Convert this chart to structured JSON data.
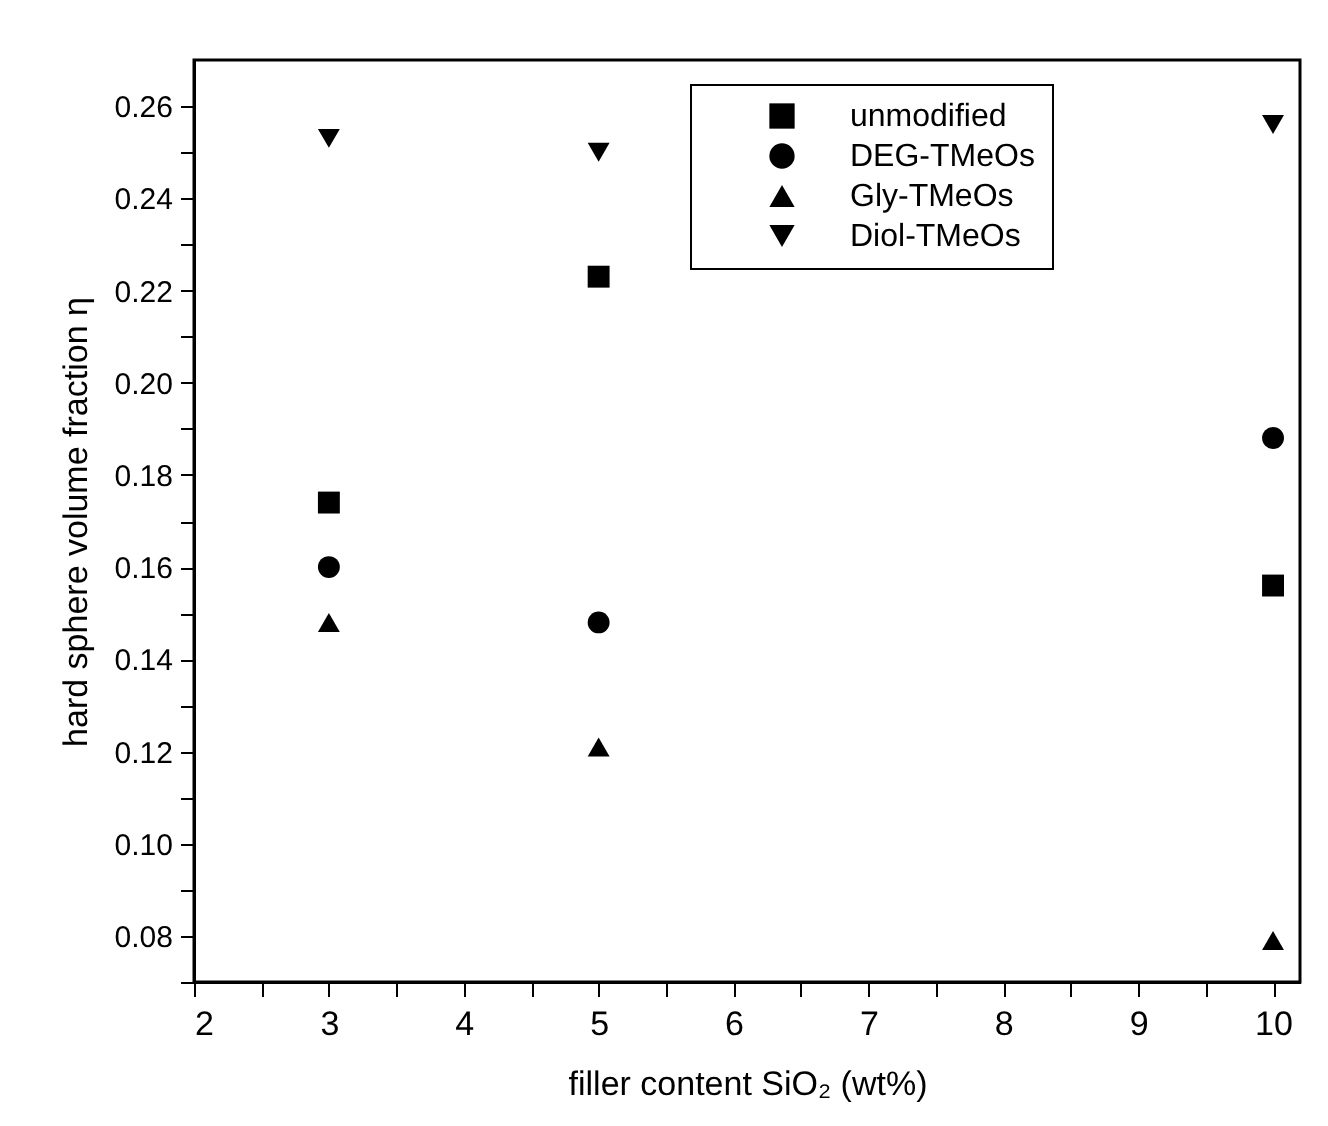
{
  "chart_data": {
    "type": "scatter",
    "xlabel": "filler content SiO₂ (wt%)",
    "ylabel": "hard sphere volume fraction η",
    "x": [
      3,
      5,
      10
    ],
    "series": [
      {
        "name": "unmodified",
        "color": "#000000",
        "marker": "square",
        "values": [
          0.174,
          0.223,
          0.156
        ]
      },
      {
        "name": "DEG-TMeOs",
        "color": "#000000",
        "marker": "circle",
        "values": [
          0.16,
          0.148,
          0.188
        ]
      },
      {
        "name": "Gly-TMeOs",
        "color": "#000000",
        "marker": "triangle",
        "values": [
          0.148,
          0.121,
          0.079
        ]
      },
      {
        "name": "Diol-TMeOs",
        "color": "#000000",
        "marker": "triangle-down",
        "values": [
          0.253,
          0.25,
          0.256
        ]
      }
    ],
    "xlim": [
      2,
      10.2
    ],
    "xticks": [
      2,
      {
        "value": 2.5,
        "label": null
      },
      3,
      {
        "value": 3.5,
        "label": null
      },
      4,
      {
        "value": 4.5,
        "label": null
      },
      5,
      {
        "value": 5.5,
        "label": null
      },
      6,
      {
        "value": 6.5,
        "label": null
      },
      7,
      {
        "value": 7.5,
        "label": null
      },
      8,
      {
        "value": 8.5,
        "label": null
      },
      9,
      {
        "value": 9.5,
        "label": null
      },
      10
    ],
    "ylim": [
      0.07,
      0.27
    ],
    "yticks": [
      {
        "value": 0.07,
        "label": null
      },
      0.08,
      {
        "value": 0.09,
        "label": null
      },
      {
        "value": 0.1,
        "label": "0.10"
      },
      {
        "value": 0.11,
        "label": null
      },
      0.12,
      {
        "value": 0.13,
        "label": null
      },
      0.14,
      {
        "value": 0.15,
        "label": null
      },
      0.16,
      {
        "value": 0.17,
        "label": null
      },
      0.18,
      {
        "value": 0.19,
        "label": null
      },
      {
        "value": 0.2,
        "label": "0.20"
      },
      {
        "value": 0.21,
        "label": null
      },
      0.22,
      {
        "value": 0.23,
        "label": null
      },
      0.24,
      {
        "value": 0.25,
        "label": null
      },
      0.26
    ],
    "legend": "top",
    "grid": false
  }
}
